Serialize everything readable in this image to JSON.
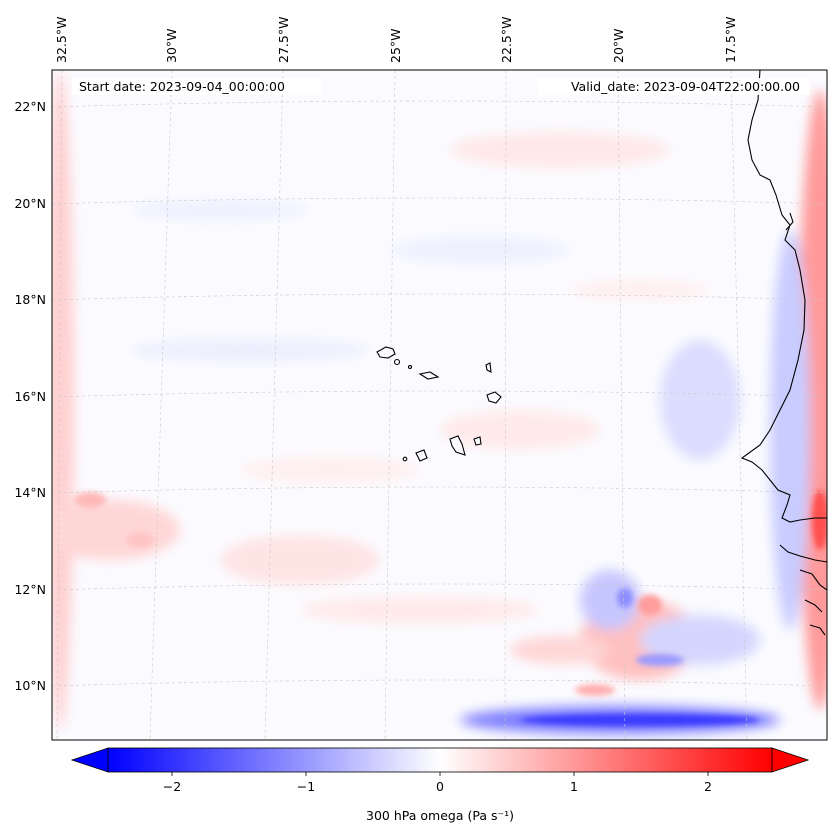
{
  "map": {
    "header_left": "Start date: 2023-09-04_00:00:00",
    "header_right": "Valid_date: 2023-09-04T22:00:00.00",
    "lon_labels": [
      "32.5°W",
      "30°W",
      "27.5°W",
      "25°W",
      "22.5°W",
      "20°W",
      "17.5°W"
    ],
    "lat_labels": [
      "22°N",
      "20°N",
      "18°N",
      "16°N",
      "14°N",
      "12°N",
      "10°N"
    ],
    "field": "300 hPa omega",
    "colors": {
      "negative": "#0000ff",
      "zero": "#ffffff",
      "positive": "#ff0000",
      "coast": "#000000",
      "grid": "#c8c8c8"
    }
  },
  "colorbar": {
    "label": "300 hPa omega (Pa s⁻¹)",
    "ticks": [
      "−2",
      "−1",
      "0",
      "1",
      "2"
    ],
    "range": [
      -2.6,
      2.6
    ],
    "extend": "both",
    "colormap": "bwr"
  }
}
